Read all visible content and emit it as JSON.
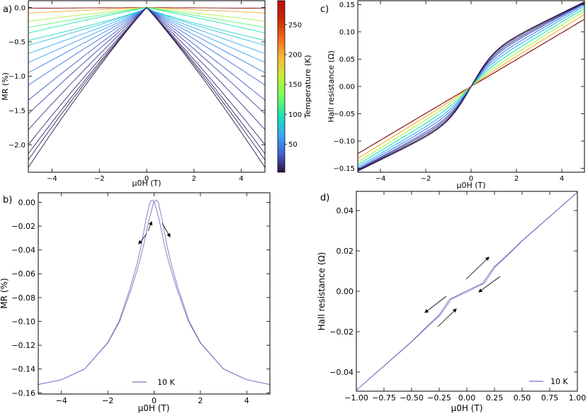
{
  "chart_data": [
    {
      "id": "a",
      "panel_label": "a)",
      "type": "line",
      "xlabel": "μ0H (T)",
      "ylabel": "MR (%)",
      "xlim": [
        -5,
        5
      ],
      "ylim": [
        -2.4,
        0.1
      ],
      "xticks": [
        -4,
        -2,
        0,
        2,
        4
      ],
      "yticks": [
        0.0,
        -0.5,
        -1.0,
        -1.5,
        -2.0
      ],
      "xtick_labels": [
        "−4",
        "−2",
        "0",
        "2",
        "4"
      ],
      "ytick_labels": [
        "0.0",
        "−0.5",
        "−1.0",
        "−1.5",
        "−2.0"
      ],
      "grid": false,
      "colorbar": {
        "label": "Temperature (K)",
        "range": [
          3,
          290
        ],
        "ticks": [
          50,
          100,
          150,
          200,
          250
        ],
        "tick_labels": [
          "50",
          "100",
          "150",
          "200",
          "250"
        ],
        "colormap": [
          "#30123b",
          "#4662d7",
          "#36aaf9",
          "#1ae4b6",
          "#72fe5e",
          "#c8ef34",
          "#faba39",
          "#f66b19",
          "#ca2a04",
          "#7a0403"
        ]
      },
      "series": [
        {
          "temperature": 285,
          "mr_at_5T": -0.01
        },
        {
          "temperature": 200,
          "mr_at_5T": -0.08
        },
        {
          "temperature": 150,
          "mr_at_5T": -0.2
        },
        {
          "temperature": 120,
          "mr_at_5T": -0.29
        },
        {
          "temperature": 100,
          "mr_at_5T": -0.37
        },
        {
          "temperature": 90,
          "mr_at_5T": -0.48
        },
        {
          "temperature": 80,
          "mr_at_5T": -0.55
        },
        {
          "temperature": 70,
          "mr_at_5T": -0.67
        },
        {
          "temperature": 60,
          "mr_at_5T": -0.8
        },
        {
          "temperature": 50,
          "mr_at_5T": -0.95
        },
        {
          "temperature": 40,
          "mr_at_5T": -1.13
        },
        {
          "temperature": 30,
          "mr_at_5T": -1.35
        },
        {
          "temperature": 25,
          "mr_at_5T": -1.55
        },
        {
          "temperature": 20,
          "mr_at_5T": -1.78
        },
        {
          "temperature": 15,
          "mr_at_5T": -2.0
        },
        {
          "temperature": 12,
          "mr_at_5T": -2.13
        },
        {
          "temperature": 10,
          "mr_at_5T": -2.22
        },
        {
          "temperature": 5,
          "mr_at_5T": -2.33
        }
      ]
    },
    {
      "id": "b",
      "panel_label": "b)",
      "type": "line",
      "xlabel": "μ0H (T)",
      "ylabel": "MR (%)",
      "xlim": [
        -5,
        5
      ],
      "ylim": [
        -0.161,
        0.008
      ],
      "xticks": [
        -4,
        -2,
        0,
        2,
        4
      ],
      "yticks": [
        0.0,
        -0.02,
        -0.04,
        -0.06,
        -0.08,
        -0.1,
        -0.12,
        -0.14,
        -0.16
      ],
      "xtick_labels": [
        "−4",
        "−2",
        "0",
        "2",
        "4"
      ],
      "ytick_labels": [
        "0.00",
        "−0.02",
        "−0.04",
        "−0.06",
        "−0.08",
        "−0.10",
        "−0.12",
        "−0.14",
        "−0.16"
      ],
      "grid": false,
      "legend": {
        "entries": [
          "10 K"
        ],
        "placement": "lower center"
      },
      "series": [
        {
          "name": "10 K",
          "color": "#7b72c2",
          "x": [
            -5,
            -4,
            -3,
            -2,
            -1.5,
            -1,
            -0.7,
            -0.5,
            -0.3,
            -0.1,
            0,
            0.1,
            0.3,
            0.5,
            0.7,
            1,
            1.5,
            2,
            3,
            4,
            5
          ],
          "y": [
            -0.153,
            -0.149,
            -0.14,
            -0.118,
            -0.1,
            -0.072,
            -0.052,
            -0.036,
            -0.016,
            0.0,
            0.002,
            0.0,
            -0.016,
            -0.036,
            -0.052,
            -0.072,
            -0.1,
            -0.118,
            -0.14,
            -0.149,
            -0.153
          ]
        }
      ]
    },
    {
      "id": "c",
      "panel_label": "c)",
      "type": "line",
      "xlabel": "μ0H (T)",
      "ylabel": "Hall resistance (Ω)",
      "xlim": [
        -5,
        5
      ],
      "ylim": [
        -0.157,
        0.157
      ],
      "xticks": [
        -4,
        -2,
        0,
        2,
        4
      ],
      "yticks": [
        -0.15,
        -0.1,
        -0.05,
        0.0,
        0.05,
        0.1,
        0.15
      ],
      "xtick_labels": [
        "−4",
        "−2",
        "0",
        "2",
        "4"
      ],
      "ytick_labels": [
        "−0.15",
        "−0.10",
        "−0.05",
        "0.00",
        "0.05",
        "0.10",
        "0.15"
      ],
      "grid": false,
      "series": [
        {
          "temperature": 290,
          "hall_at_5T": 0.123,
          "anomalous": 0.0
        },
        {
          "temperature": 200,
          "hall_at_5T": 0.132,
          "anomalous": 0.004
        },
        {
          "temperature": 150,
          "hall_at_5T": 0.138,
          "anomalous": 0.01
        },
        {
          "temperature": 100,
          "hall_at_5T": 0.143,
          "anomalous": 0.018
        },
        {
          "temperature": 70,
          "hall_at_5T": 0.147,
          "anomalous": 0.026
        },
        {
          "temperature": 50,
          "hall_at_5T": 0.15,
          "anomalous": 0.033
        },
        {
          "temperature": 30,
          "hall_at_5T": 0.152,
          "anomalous": 0.04
        },
        {
          "temperature": 20,
          "hall_at_5T": 0.153,
          "anomalous": 0.045
        },
        {
          "temperature": 10,
          "hall_at_5T": 0.154,
          "anomalous": 0.05
        },
        {
          "temperature": 5,
          "hall_at_5T": 0.155,
          "anomalous": 0.053
        }
      ]
    },
    {
      "id": "d",
      "panel_label": "d)",
      "type": "line",
      "xlabel": "μ0H (T)",
      "ylabel": "Hall resistance (Ω)",
      "xlim": [
        -1.0,
        1.0
      ],
      "ylim": [
        -0.0495,
        0.0495
      ],
      "xticks": [
        -1.0,
        -0.75,
        -0.5,
        -0.25,
        0.0,
        0.25,
        0.5,
        0.75,
        1.0
      ],
      "yticks": [
        -0.04,
        -0.02,
        0.0,
        0.02,
        0.04
      ],
      "xtick_labels": [
        "−1.00",
        "−0.75",
        "−0.50",
        "−0.25",
        "0.00",
        "0.25",
        "0.50",
        "0.75",
        "1.00"
      ],
      "ytick_labels": [
        "−0.04",
        "−0.02",
        "0.00",
        "0.02",
        "0.04"
      ],
      "grid": false,
      "legend": {
        "entries": [
          "10 K"
        ],
        "placement": "lower right"
      },
      "series": [
        {
          "name": "10 K",
          "color": "#7b72c2",
          "x": [
            -1.0,
            -0.75,
            -0.5,
            -0.35,
            -0.25,
            -0.15,
            0,
            0.15,
            0.25,
            0.35,
            0.5,
            0.75,
            1.0
          ],
          "y": [
            -0.049,
            -0.037,
            -0.025,
            -0.017,
            -0.012,
            -0.004,
            0.0,
            0.004,
            0.012,
            0.017,
            0.025,
            0.037,
            0.049
          ]
        }
      ]
    }
  ]
}
